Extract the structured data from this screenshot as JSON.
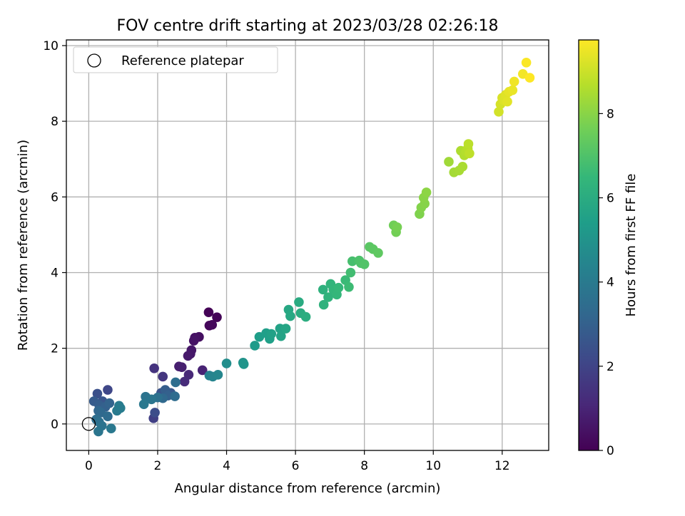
{
  "chart_data": {
    "type": "scatter",
    "title": "FOV centre drift starting at 2023/03/28 02:26:18",
    "xlabel": "Angular distance from reference (arcmin)",
    "ylabel": "Rotation from reference (arcmin)",
    "xlim": [
      -0.65,
      13.35
    ],
    "ylim": [
      -0.7,
      10.15
    ],
    "xticks": [
      0,
      2,
      4,
      6,
      8,
      10,
      12
    ],
    "yticks": [
      0,
      2,
      4,
      6,
      8,
      10
    ],
    "grid": true,
    "legend": {
      "placement": "top-left",
      "entries": [
        "Reference platepar"
      ]
    },
    "reference_point": {
      "name": "Reference platepar",
      "x": 0,
      "y": 0
    },
    "colorbar": {
      "label": "Hours from first FF file",
      "colormap": "viridis",
      "range": [
        0,
        9.75
      ],
      "ticks": [
        0,
        2,
        4,
        6,
        8
      ]
    },
    "colormap_stops": [
      "#440154",
      "#482878",
      "#3e4989",
      "#31688e",
      "#26828e",
      "#1f9e89",
      "#35b779",
      "#6ece58",
      "#b5de2b",
      "#fde725"
    ],
    "series": [
      {
        "points": [
          {
            "x": 3.48,
            "y": 2.95,
            "t": 0.05
          },
          {
            "x": 3.72,
            "y": 2.82,
            "t": 0.1
          },
          {
            "x": 3.5,
            "y": 2.6,
            "t": 0.15
          },
          {
            "x": 3.58,
            "y": 2.62,
            "t": 0.2
          },
          {
            "x": 3.2,
            "y": 2.3,
            "t": 0.4
          },
          {
            "x": 3.08,
            "y": 2.28,
            "t": 0.45
          },
          {
            "x": 3.05,
            "y": 2.2,
            "t": 0.5
          },
          {
            "x": 2.98,
            "y": 1.95,
            "t": 0.6
          },
          {
            "x": 2.95,
            "y": 1.85,
            "t": 0.65
          },
          {
            "x": 2.88,
            "y": 1.8,
            "t": 0.7
          },
          {
            "x": 2.62,
            "y": 1.52,
            "t": 0.8
          },
          {
            "x": 2.7,
            "y": 1.5,
            "t": 0.85
          },
          {
            "x": 3.3,
            "y": 1.42,
            "t": 0.95
          },
          {
            "x": 2.9,
            "y": 1.3,
            "t": 1.1
          },
          {
            "x": 2.78,
            "y": 1.12,
            "t": 1.2
          },
          {
            "x": 1.9,
            "y": 1.47,
            "t": 1.45
          },
          {
            "x": 2.15,
            "y": 1.25,
            "t": 1.55
          },
          {
            "x": 1.88,
            "y": 0.15,
            "t": 1.85
          },
          {
            "x": 1.92,
            "y": 0.3,
            "t": 2.3
          },
          {
            "x": 2.1,
            "y": 0.82,
            "t": 2.5
          },
          {
            "x": 2.38,
            "y": 0.82,
            "t": 2.7
          },
          {
            "x": 2.22,
            "y": 0.9,
            "t": 2.9
          },
          {
            "x": 2.3,
            "y": 0.75,
            "t": 3.0
          },
          {
            "x": 2.5,
            "y": 0.73,
            "t": 3.4
          },
          {
            "x": 2.52,
            "y": 1.1,
            "t": 3.5
          },
          {
            "x": 2.15,
            "y": 0.68,
            "t": 3.3
          },
          {
            "x": 2.0,
            "y": 0.7,
            "t": 3.6
          },
          {
            "x": 1.65,
            "y": 0.72,
            "t": 3.7
          },
          {
            "x": 1.82,
            "y": 0.65,
            "t": 3.8
          },
          {
            "x": 1.6,
            "y": 0.52,
            "t": 3.9
          },
          {
            "x": 0.55,
            "y": 0.9,
            "t": 2.1
          },
          {
            "x": 0.25,
            "y": 0.8,
            "t": 2.4
          },
          {
            "x": 0.4,
            "y": 0.6,
            "t": 2.6
          },
          {
            "x": 0.15,
            "y": 0.6,
            "t": 2.8
          },
          {
            "x": 0.3,
            "y": 0.5,
            "t": 2.9
          },
          {
            "x": 0.48,
            "y": 0.45,
            "t": 3.0
          },
          {
            "x": 0.6,
            "y": 0.55,
            "t": 3.1
          },
          {
            "x": 0.28,
            "y": 0.35,
            "t": 3.2
          },
          {
            "x": 0.35,
            "y": 0.3,
            "t": 3.3
          },
          {
            "x": 0.55,
            "y": 0.2,
            "t": 3.4
          },
          {
            "x": 0.22,
            "y": 0.12,
            "t": 3.5
          },
          {
            "x": 0.3,
            "y": 0.05,
            "t": 3.6
          },
          {
            "x": 0.38,
            "y": -0.05,
            "t": 3.7
          },
          {
            "x": 0.28,
            "y": -0.2,
            "t": 3.8
          },
          {
            "x": 0.65,
            "y": -0.12,
            "t": 3.9
          },
          {
            "x": 0.82,
            "y": 0.35,
            "t": 4.0
          },
          {
            "x": 0.88,
            "y": 0.48,
            "t": 4.05
          },
          {
            "x": 0.92,
            "y": 0.42,
            "t": 4.1
          },
          {
            "x": 3.5,
            "y": 1.28,
            "t": 4.3
          },
          {
            "x": 3.6,
            "y": 1.25,
            "t": 4.4
          },
          {
            "x": 3.75,
            "y": 1.3,
            "t": 4.5
          },
          {
            "x": 4.0,
            "y": 1.6,
            "t": 4.8
          },
          {
            "x": 4.48,
            "y": 1.62,
            "t": 5.0
          },
          {
            "x": 4.5,
            "y": 1.58,
            "t": 5.05
          },
          {
            "x": 4.82,
            "y": 2.07,
            "t": 5.3
          },
          {
            "x": 4.95,
            "y": 2.3,
            "t": 5.4
          },
          {
            "x": 5.15,
            "y": 2.4,
            "t": 5.45
          },
          {
            "x": 5.25,
            "y": 2.25,
            "t": 5.5
          },
          {
            "x": 5.3,
            "y": 2.38,
            "t": 5.55
          },
          {
            "x": 5.55,
            "y": 2.52,
            "t": 5.6
          },
          {
            "x": 5.58,
            "y": 2.32,
            "t": 5.65
          },
          {
            "x": 5.72,
            "y": 2.52,
            "t": 5.7
          },
          {
            "x": 5.8,
            "y": 3.02,
            "t": 5.8
          },
          {
            "x": 5.85,
            "y": 2.85,
            "t": 5.85
          },
          {
            "x": 6.1,
            "y": 3.22,
            "t": 5.95
          },
          {
            "x": 6.15,
            "y": 2.93,
            "t": 6.0
          },
          {
            "x": 6.3,
            "y": 2.83,
            "t": 6.05
          },
          {
            "x": 6.8,
            "y": 3.55,
            "t": 6.2
          },
          {
            "x": 6.82,
            "y": 3.15,
            "t": 6.25
          },
          {
            "x": 6.95,
            "y": 3.35,
            "t": 6.3
          },
          {
            "x": 7.02,
            "y": 3.7,
            "t": 6.35
          },
          {
            "x": 7.1,
            "y": 3.55,
            "t": 6.4
          },
          {
            "x": 7.2,
            "y": 3.42,
            "t": 6.45
          },
          {
            "x": 7.25,
            "y": 3.6,
            "t": 6.5
          },
          {
            "x": 7.45,
            "y": 3.8,
            "t": 6.6
          },
          {
            "x": 7.55,
            "y": 3.62,
            "t": 6.65
          },
          {
            "x": 7.6,
            "y": 4.0,
            "t": 6.75
          },
          {
            "x": 7.65,
            "y": 4.3,
            "t": 6.85
          },
          {
            "x": 7.85,
            "y": 4.32,
            "t": 6.95
          },
          {
            "x": 7.9,
            "y": 4.25,
            "t": 7.0
          },
          {
            "x": 8.0,
            "y": 4.22,
            "t": 7.05
          },
          {
            "x": 8.15,
            "y": 4.68,
            "t": 7.2
          },
          {
            "x": 8.25,
            "y": 4.62,
            "t": 7.25
          },
          {
            "x": 8.4,
            "y": 4.52,
            "t": 7.3
          },
          {
            "x": 8.85,
            "y": 5.25,
            "t": 7.6
          },
          {
            "x": 8.92,
            "y": 5.07,
            "t": 7.65
          },
          {
            "x": 8.95,
            "y": 5.2,
            "t": 7.7
          },
          {
            "x": 9.6,
            "y": 5.55,
            "t": 7.85
          },
          {
            "x": 9.65,
            "y": 5.72,
            "t": 7.9
          },
          {
            "x": 9.75,
            "y": 5.82,
            "t": 7.95
          },
          {
            "x": 9.72,
            "y": 5.98,
            "t": 8.0
          },
          {
            "x": 9.8,
            "y": 6.12,
            "t": 8.05
          },
          {
            "x": 10.45,
            "y": 6.93,
            "t": 8.35
          },
          {
            "x": 10.6,
            "y": 6.65,
            "t": 8.4
          },
          {
            "x": 10.75,
            "y": 6.7,
            "t": 8.45
          },
          {
            "x": 10.85,
            "y": 6.8,
            "t": 8.5
          },
          {
            "x": 10.8,
            "y": 7.22,
            "t": 8.55
          },
          {
            "x": 10.9,
            "y": 7.1,
            "t": 8.6
          },
          {
            "x": 10.95,
            "y": 7.2,
            "t": 8.65
          },
          {
            "x": 11.0,
            "y": 7.28,
            "t": 8.7
          },
          {
            "x": 11.02,
            "y": 7.4,
            "t": 8.75
          },
          {
            "x": 11.05,
            "y": 7.15,
            "t": 8.8
          },
          {
            "x": 11.9,
            "y": 8.25,
            "t": 9.1
          },
          {
            "x": 11.95,
            "y": 8.45,
            "t": 9.15
          },
          {
            "x": 12.0,
            "y": 8.62,
            "t": 9.2
          },
          {
            "x": 12.05,
            "y": 8.55,
            "t": 9.25
          },
          {
            "x": 12.1,
            "y": 8.7,
            "t": 9.3
          },
          {
            "x": 12.15,
            "y": 8.52,
            "t": 9.35
          },
          {
            "x": 12.2,
            "y": 8.78,
            "t": 9.4
          },
          {
            "x": 12.3,
            "y": 8.82,
            "t": 9.45
          },
          {
            "x": 12.35,
            "y": 9.05,
            "t": 9.55
          },
          {
            "x": 12.6,
            "y": 9.25,
            "t": 9.6
          },
          {
            "x": 12.7,
            "y": 9.55,
            "t": 9.7
          },
          {
            "x": 12.8,
            "y": 9.15,
            "t": 9.75
          }
        ]
      }
    ]
  }
}
